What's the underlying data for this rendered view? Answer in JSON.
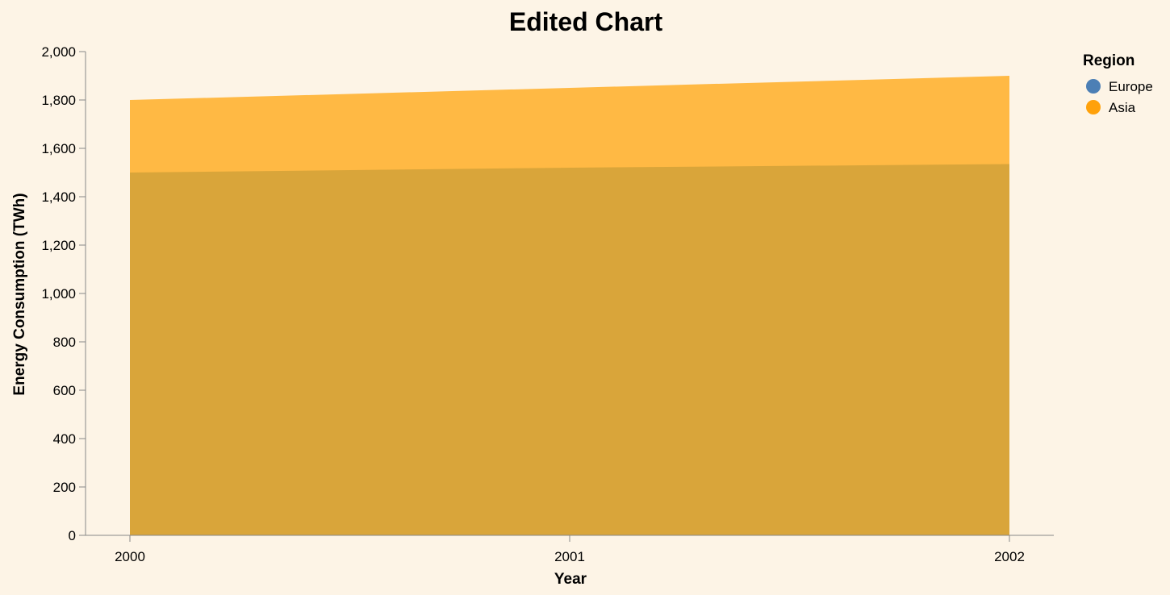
{
  "chart_data": {
    "type": "area",
    "title": "Edited Chart",
    "xlabel": "Year",
    "ylabel": "Energy Consumption (TWh)",
    "x": [
      "2000",
      "2001",
      "2002"
    ],
    "ylim": [
      0,
      2000
    ],
    "yticks": [
      0,
      200,
      400,
      600,
      800,
      1000,
      1200,
      1400,
      1600,
      1800,
      2000
    ],
    "ytick_labels": [
      "0",
      "200",
      "400",
      "600",
      "800",
      "1,000",
      "1,200",
      "1,400",
      "1,600",
      "1,800",
      "2,000"
    ],
    "grid": false,
    "legend": {
      "title": "Region",
      "placement": "top-right"
    },
    "series": [
      {
        "name": "Asia",
        "values": [
          1800,
          1850,
          1900
        ],
        "color": "#ffb944"
      },
      {
        "name": "Europe",
        "values": [
          1500,
          1520,
          1535
        ],
        "color": "#d9a53a"
      }
    ],
    "legend_items": [
      {
        "label": "Europe",
        "color": "#4c7fb5"
      },
      {
        "label": "Asia",
        "color": "#ffa10a"
      }
    ]
  }
}
